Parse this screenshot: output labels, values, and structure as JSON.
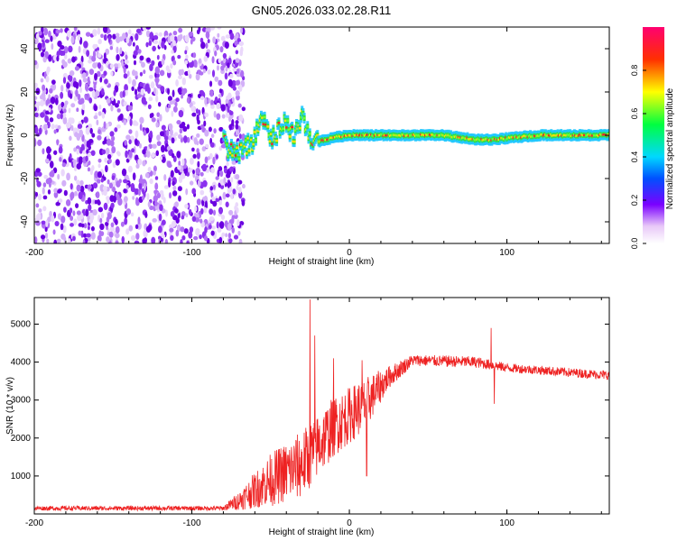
{
  "title": "GN05.2026.033.02.28.R11",
  "chart_data": [
    {
      "type": "heatmap",
      "name": "spectrogram",
      "xlabel": "Height of straight line (km)",
      "ylabel": "Frequency (Hz)",
      "xlim": [
        -200,
        165
      ],
      "ylim": [
        -50,
        50
      ],
      "xticks": [
        -200,
        -100,
        0,
        100
      ],
      "yticks": [
        -40,
        -20,
        0,
        20,
        40
      ],
      "noise_region_x": [
        -200,
        -75
      ],
      "signal_trace": [
        {
          "x": -78,
          "f": -8
        },
        {
          "x": -70,
          "f": -7
        },
        {
          "x": -62,
          "f": -3
        },
        {
          "x": -55,
          "f": 7
        },
        {
          "x": -50,
          "f": -2
        },
        {
          "x": -45,
          "f": 2
        },
        {
          "x": -40,
          "f": 6
        },
        {
          "x": -35,
          "f": -1
        },
        {
          "x": -30,
          "f": 8
        },
        {
          "x": -25,
          "f": -3
        },
        {
          "x": -20,
          "f": -3
        },
        {
          "x": -15,
          "f": -2
        },
        {
          "x": -10,
          "f": -1
        },
        {
          "x": 0,
          "f": 0
        },
        {
          "x": 20,
          "f": 0
        },
        {
          "x": 60,
          "f": 0
        },
        {
          "x": 80,
          "f": -2
        },
        {
          "x": 90,
          "f": -2
        },
        {
          "x": 120,
          "f": 0
        },
        {
          "x": 165,
          "f": 0
        }
      ],
      "colorbar": {
        "label": "Normalized spectral amplitude",
        "ticks": [
          "0.0",
          "0.2",
          "0.4",
          "0.6",
          "0.8"
        ],
        "range": [
          0,
          1
        ]
      }
    },
    {
      "type": "line",
      "name": "snr",
      "xlabel": "Height of straight line (km)",
      "ylabel": "SNR (10 * v/v)",
      "xlim": [
        -200,
        165
      ],
      "ylim": [
        0,
        5700
      ],
      "xticks": [
        -200,
        -100,
        0,
        100
      ],
      "yticks": [
        1000,
        2000,
        3000,
        4000,
        5000
      ],
      "color": "#ee2222",
      "envelope": [
        {
          "x": -200,
          "mean": 150,
          "noise": 60
        },
        {
          "x": -80,
          "mean": 150,
          "noise": 60
        },
        {
          "x": -70,
          "mean": 350,
          "noise": 250
        },
        {
          "x": -50,
          "mean": 900,
          "noise": 700
        },
        {
          "x": -30,
          "mean": 1300,
          "noise": 900
        },
        {
          "x": -10,
          "mean": 2300,
          "noise": 800
        },
        {
          "x": 10,
          "mean": 2900,
          "noise": 700
        },
        {
          "x": 25,
          "mean": 3600,
          "noise": 300
        },
        {
          "x": 40,
          "mean": 4050,
          "noise": 150
        },
        {
          "x": 80,
          "mean": 4000,
          "noise": 150
        },
        {
          "x": 100,
          "mean": 3850,
          "noise": 120
        },
        {
          "x": 165,
          "mean": 3650,
          "noise": 120
        }
      ],
      "spikes": [
        {
          "x": -25,
          "y": 5650
        },
        {
          "x": -22,
          "y": 4700
        },
        {
          "x": -10,
          "y": 4100
        },
        {
          "x": 8,
          "y": 4050
        },
        {
          "x": 11,
          "y": 1000
        },
        {
          "x": 90,
          "y": 4900
        },
        {
          "x": 92,
          "y": 2900
        }
      ]
    }
  ]
}
